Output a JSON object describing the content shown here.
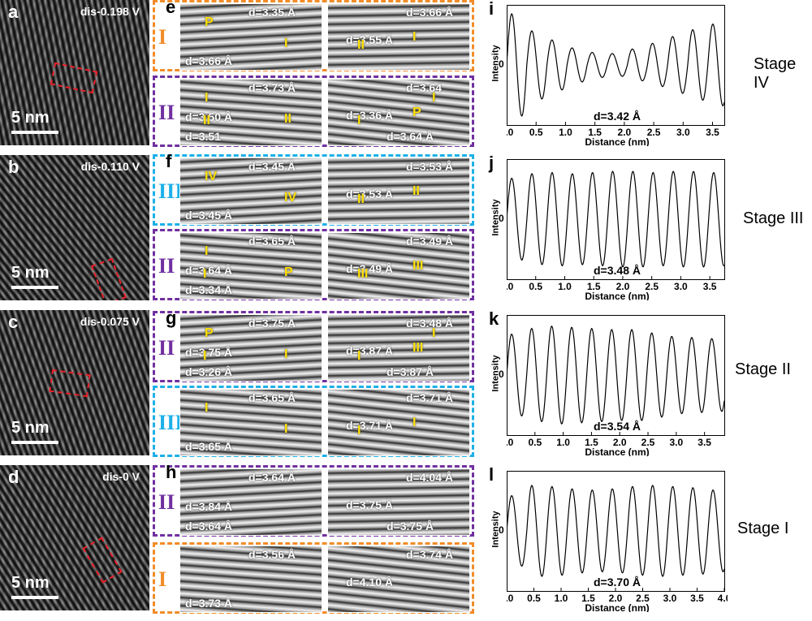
{
  "hrtem_panels": [
    {
      "letter": "a",
      "condition": "dis-0.198 V",
      "scale": "5 nm"
    },
    {
      "letter": "b",
      "condition": "dis-0.110 V",
      "scale": "5 nm"
    },
    {
      "letter": "c",
      "condition": "dis-0.075 V",
      "scale": "5 nm"
    },
    {
      "letter": "d",
      "condition": "dis-0 V",
      "scale": "5 nm"
    }
  ],
  "fringe_groups": [
    {
      "letter": "e",
      "rows": [
        {
          "roman": "I",
          "color": "#f28c28",
          "left": {
            "labels": [
              "d=3.66 Å",
              "d=3.35 Å"
            ],
            "phases": [
              "P",
              "I"
            ]
          },
          "right": {
            "labels": [
              "d=3.66 Å",
              "d=3.55 Å"
            ],
            "phases": [
              "II",
              "I"
            ]
          }
        },
        {
          "roman": "II",
          "color": "#7030a0",
          "left": {
            "labels": [
              "d=3.51",
              "d=3.73 Å",
              "d=3.50 Å"
            ],
            "phases": [
              "I",
              "II",
              "II"
            ]
          },
          "right": {
            "labels": [
              "d=3.64",
              "d=3.36 Å",
              "d=3.64 Å"
            ],
            "phases": [
              "I",
              "P",
              "I"
            ]
          }
        }
      ]
    },
    {
      "letter": "f",
      "rows": [
        {
          "roman": "III",
          "color": "#1cb0e8",
          "left": {
            "labels": [
              "d=3.45 Å",
              "d=3.45 Å"
            ],
            "phases": [
              "IV",
              "IV"
            ]
          },
          "right": {
            "labels": [
              "d=3.53 Å",
              "d=3.53 Å"
            ],
            "phases": [
              "II",
              "II"
            ]
          }
        },
        {
          "roman": "II",
          "color": "#7030a0",
          "left": {
            "labels": [
              "d=3.34 Å",
              "d=3.65 Å",
              "d=3.64 Å"
            ],
            "phases": [
              "I",
              "P",
              "I"
            ]
          },
          "right": {
            "labels": [
              "d=3.49 Å",
              "d=3.49 Å"
            ],
            "phases": [
              "III",
              "III"
            ]
          }
        }
      ]
    },
    {
      "letter": "g",
      "rows": [
        {
          "roman": "II",
          "color": "#7030a0",
          "left": {
            "labels": [
              "d=3.26 Å",
              "d=3.75 Å",
              "d=3.75 Å"
            ],
            "phases": [
              "P",
              "I",
              "I"
            ]
          },
          "right": {
            "labels": [
              "d=3.48 Å",
              "d=3.87 Å",
              "d=3.87 Å"
            ],
            "phases": [
              "I",
              "III",
              "I"
            ]
          }
        },
        {
          "roman": "III",
          "color": "#1cb0e8",
          "left": {
            "labels": [
              "d=3.65 Å",
              "d=3.65 Å"
            ],
            "phases": [
              "I",
              "I"
            ]
          },
          "right": {
            "labels": [
              "d=3.71 Å",
              "d=3.71 Å"
            ],
            "phases": [
              "I",
              "I"
            ]
          }
        }
      ]
    },
    {
      "letter": "h",
      "rows": [
        {
          "roman": "II",
          "color": "#7030a0",
          "left": {
            "labels": [
              "d=3.64 Å",
              "d=3.64 Å",
              "d=3.84 Å"
            ],
            "phases": []
          },
          "right": {
            "labels": [
              "d=4.04 Å",
              "d=3.75 Å",
              "d=3.75 Å"
            ],
            "phases": []
          }
        },
        {
          "roman": "I",
          "color": "#f28c28",
          "left": {
            "labels": [
              "d=3.73 Å",
              "d=3.56 Å"
            ],
            "phases": []
          },
          "right": {
            "labels": [
              "d=3.74 Å",
              "d=4.10 Å"
            ],
            "phases": []
          }
        }
      ]
    }
  ],
  "chart_data": [
    {
      "type": "line",
      "panel": "i",
      "stage": "Stage IV",
      "d_label": "d=3.42 Å",
      "xlabel": "Distance (nm)",
      "ylabel": "Intensity",
      "xlim": [
        0,
        3.7
      ],
      "xticks": [
        "0.0",
        "0.5",
        "1.0",
        "1.5",
        "2.0",
        "2.5",
        "3.0",
        "3.5"
      ],
      "yticks": [
        "0"
      ],
      "period_nm": 0.342,
      "peaks": [
        0.9,
        0.6,
        0.44,
        0.3,
        0.22,
        0.2,
        0.28,
        0.38,
        0.5,
        0.62,
        0.72
      ]
    },
    {
      "type": "line",
      "panel": "j",
      "stage": "Stage III",
      "d_label": "d=3.48 Å",
      "xlabel": "Distance (nm)",
      "ylabel": "Intensity",
      "xlim": [
        0,
        3.75
      ],
      "xticks": [
        "0.0",
        "0.5",
        "1.0",
        "1.5",
        "2.0",
        "2.5",
        "3.0",
        "3.5"
      ],
      "yticks": [
        "0"
      ],
      "period_nm": 0.348,
      "peaks": [
        0.72,
        0.8,
        0.82,
        0.8,
        0.82,
        0.84,
        0.84,
        0.82,
        0.84,
        0.84,
        0.82
      ]
    },
    {
      "type": "line",
      "panel": "k",
      "stage": "Stage II",
      "d_label": "d=3.54 Å",
      "xlabel": "Distance (nm)",
      "ylabel": "Intensity",
      "xlim": [
        0,
        3.85
      ],
      "xticks": [
        "0.0",
        "0.5",
        "1.0",
        "1.5",
        "2.0",
        "2.5",
        "3.0",
        "3.5"
      ],
      "yticks": [
        "0"
      ],
      "period_nm": 0.354,
      "peaks": [
        0.72,
        0.82,
        0.86,
        0.84,
        0.82,
        0.8,
        0.8,
        0.74,
        0.68,
        0.66,
        0.64
      ]
    },
    {
      "type": "line",
      "panel": "l",
      "stage": "Stage I",
      "d_label": "d=3.70 Å",
      "xlabel": "Distance (nm)",
      "ylabel": "Intensity",
      "xlim": [
        0,
        4.0
      ],
      "xticks": [
        "0.0",
        "0.5",
        "1.0",
        "1.5",
        "2.0",
        "2.5",
        "3.0",
        "3.5",
        "4.0"
      ],
      "yticks": [
        "0"
      ],
      "period_nm": 0.37,
      "peaks": [
        0.62,
        0.8,
        0.78,
        0.74,
        0.72,
        0.74,
        0.78,
        0.8,
        0.78,
        0.76,
        0.72
      ]
    }
  ]
}
